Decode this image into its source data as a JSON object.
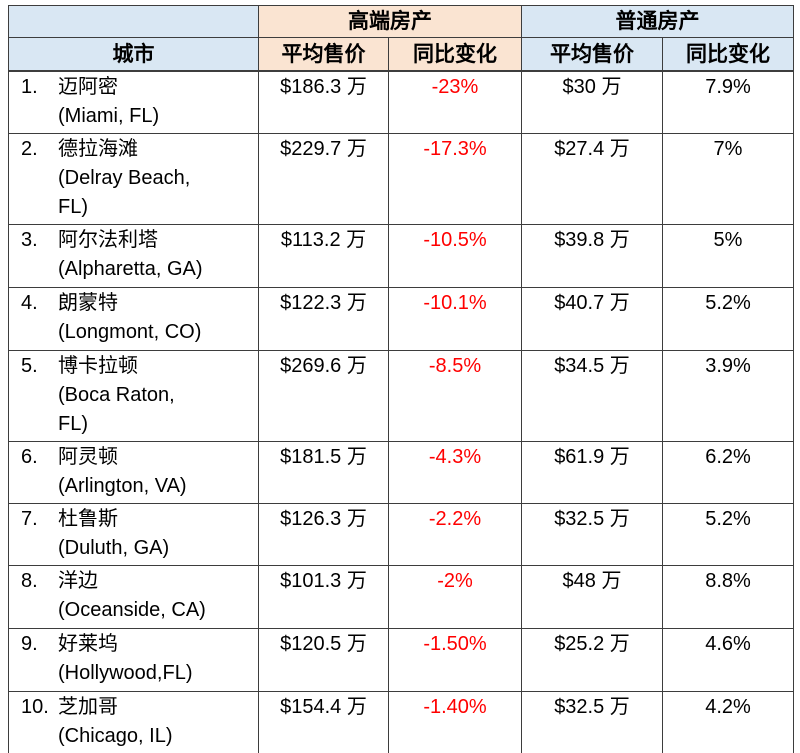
{
  "chart_data": {
    "type": "table",
    "group_headers": [
      {
        "label": "高端房产",
        "colspan": 2
      },
      {
        "label": "普通房产",
        "colspan": 2
      }
    ],
    "column_headers": {
      "city": "城市",
      "luxury_avg_price": "平均售价",
      "luxury_yoy": "同比变化",
      "regular_avg_price": "平均售价",
      "regular_yoy": "同比变化"
    },
    "rows": [
      {
        "num": "1.",
        "city_cn": "迈阿密",
        "city_en": "(Miami, FL)",
        "luxury_avg_price": "$186.3 万",
        "luxury_yoy": "-23%",
        "regular_avg_price": "$30 万",
        "regular_yoy": "7.9%"
      },
      {
        "num": "2.",
        "city_cn": "德拉海滩",
        "city_en": "(Delray Beach,\nFL)",
        "luxury_avg_price": "$229.7 万",
        "luxury_yoy": "-17.3%",
        "regular_avg_price": "$27.4 万",
        "regular_yoy": "7%"
      },
      {
        "num": "3.",
        "city_cn": "阿尔法利塔",
        "city_en": "(Alpharetta, GA)",
        "luxury_avg_price": "$113.2 万",
        "luxury_yoy": "-10.5%",
        "regular_avg_price": "$39.8 万",
        "regular_yoy": "5%"
      },
      {
        "num": "4.",
        "city_cn": "朗蒙特",
        "city_en": "(Longmont, CO)",
        "luxury_avg_price": "$122.3 万",
        "luxury_yoy": "-10.1%",
        "regular_avg_price": "$40.7 万",
        "regular_yoy": "5.2%"
      },
      {
        "num": "5.",
        "city_cn": "博卡拉顿",
        "city_en": "(Boca Raton,\nFL)",
        "luxury_avg_price": "$269.6 万",
        "luxury_yoy": "-8.5%",
        "regular_avg_price": "$34.5 万",
        "regular_yoy": "3.9%"
      },
      {
        "num": "6.",
        "city_cn": "阿灵顿",
        "city_en": "(Arlington, VA)",
        "luxury_avg_price": "$181.5 万",
        "luxury_yoy": "-4.3%",
        "regular_avg_price": "$61.9 万",
        "regular_yoy": "6.2%"
      },
      {
        "num": "7.",
        "city_cn": "杜鲁斯",
        "city_en": "(Duluth, GA)",
        "luxury_avg_price": "$126.3 万",
        "luxury_yoy": "-2.2%",
        "regular_avg_price": "$32.5 万",
        "regular_yoy": "5.2%"
      },
      {
        "num": "8.",
        "city_cn": "洋边",
        "city_en": "(Oceanside, CA)",
        "luxury_avg_price": "$101.3 万",
        "luxury_yoy": "-2%",
        "regular_avg_price": "$48 万",
        "regular_yoy": "8.8%"
      },
      {
        "num": "9.",
        "city_cn": "好莱坞",
        "city_en": "(Hollywood,FL)",
        "luxury_avg_price": "$120.5 万",
        "luxury_yoy": "-1.50%",
        "regular_avg_price": "$25.2 万",
        "regular_yoy": "4.6%"
      },
      {
        "num": "10.",
        "city_cn": "芝加哥",
        "city_en": "(Chicago, IL)",
        "luxury_avg_price": "$154.4 万",
        "luxury_yoy": "-1.40%",
        "regular_avg_price": "$32.5 万",
        "regular_yoy": "4.2%"
      }
    ],
    "colors": {
      "luxury_header_bg": "#fae4d2",
      "regular_header_bg": "#d9e7f3",
      "negative_value_color": "#ff0000",
      "border_color": "#3d3d3d"
    },
    "layout_hints": {
      "negative_yoy_shown_in_red": true,
      "grid": true
    }
  }
}
